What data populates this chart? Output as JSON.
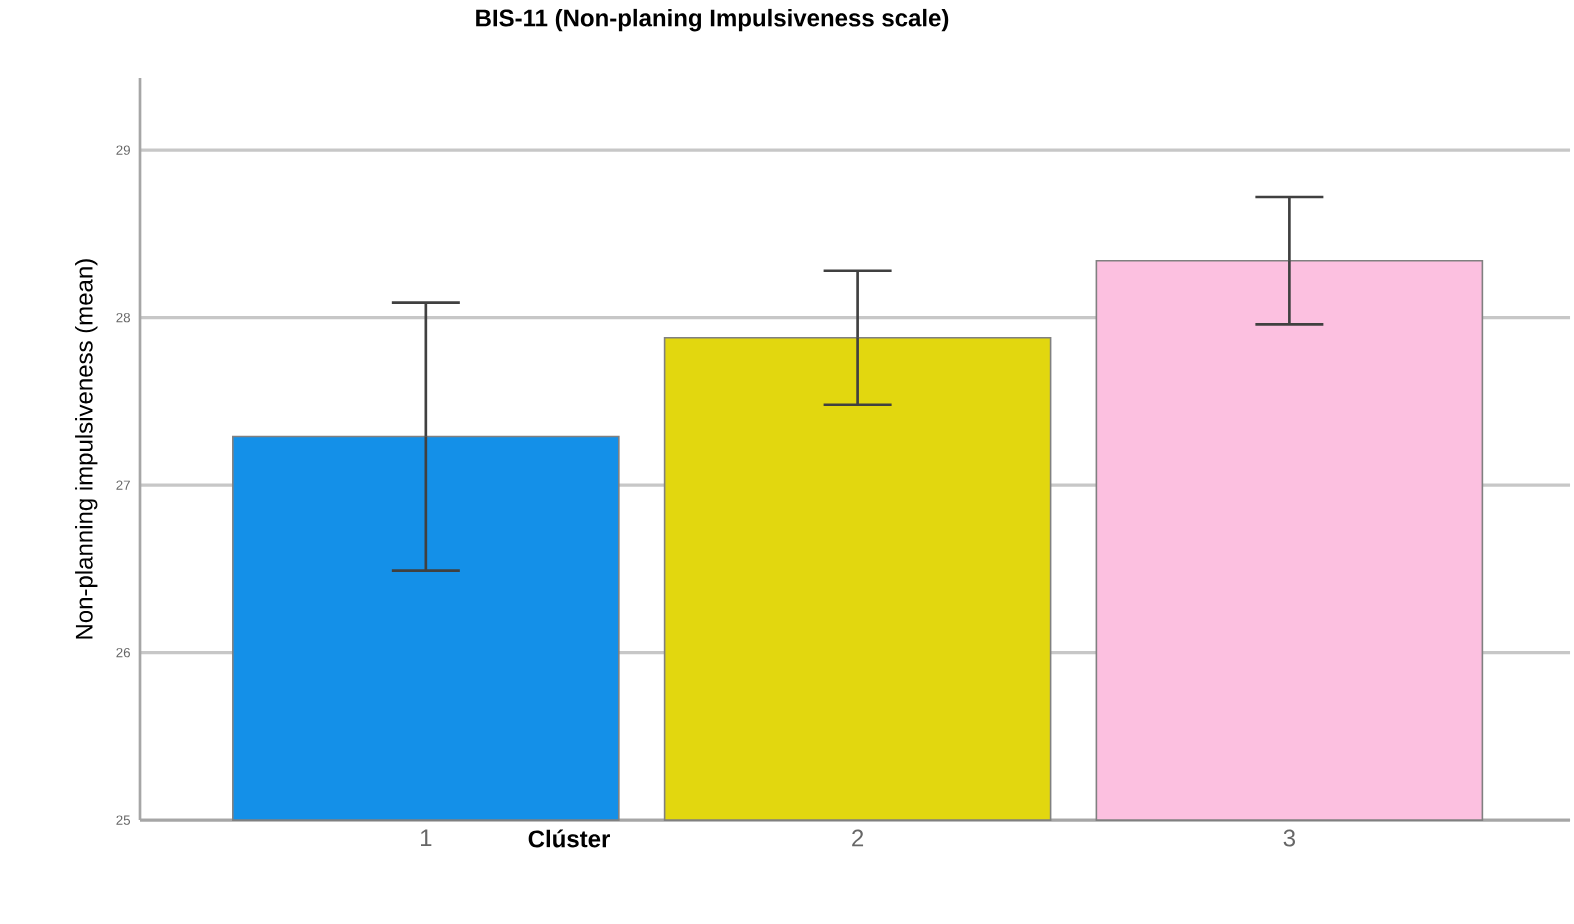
{
  "chart_data": {
    "type": "bar",
    "title": "BIS-11 (Non-planing Impulsiveness scale)",
    "xlabel": "Clúster",
    "ylabel": "Non-planning impulsiveness (mean)",
    "categories": [
      "1",
      "2",
      "3"
    ],
    "values": [
      27.29,
      27.88,
      28.34
    ],
    "errors": [
      0.8,
      0.4,
      0.38
    ],
    "colors": [
      "#1490e8",
      "#e2d70f",
      "#fcc0e0"
    ],
    "ylim": [
      25,
      29.43
    ],
    "yticks": [
      25,
      26,
      27,
      28,
      29
    ],
    "grid": "y"
  }
}
